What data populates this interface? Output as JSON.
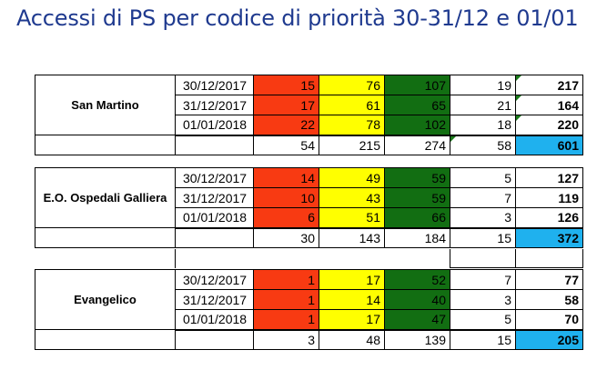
{
  "title": "Accessi di PS per codice di priorità 30-31/12 e 01/01",
  "colors": {
    "red": "#f83a12",
    "yellow": "#ffff00",
    "green": "#126e12",
    "total_highlight": "#1fb1ee",
    "title": "#1f3a8f"
  },
  "blocks": [
    {
      "site": "San Martino",
      "rows": [
        {
          "date": "30/12/2017",
          "red": "15",
          "yellow": "76",
          "green": "107",
          "white": "19",
          "total": "217"
        },
        {
          "date": "31/12/2017",
          "red": "17",
          "yellow": "61",
          "green": "65",
          "white": "21",
          "total": "164"
        },
        {
          "date": "01/01/2018",
          "red": "22",
          "yellow": "78",
          "green": "102",
          "white": "18",
          "total": "220"
        }
      ],
      "sum": {
        "red": "54",
        "yellow": "215",
        "green": "274",
        "white": "58",
        "total": "601"
      }
    },
    {
      "site": "E.O. Ospedali Galliera",
      "rows": [
        {
          "date": "30/12/2017",
          "red": "14",
          "yellow": "49",
          "green": "59",
          "white": "5",
          "total": "127"
        },
        {
          "date": "31/12/2017",
          "red": "10",
          "yellow": "43",
          "green": "59",
          "white": "7",
          "total": "119"
        },
        {
          "date": "01/01/2018",
          "red": "6",
          "yellow": "51",
          "green": "66",
          "white": "3",
          "total": "126"
        }
      ],
      "sum": {
        "red": "30",
        "yellow": "143",
        "green": "184",
        "white": "15",
        "total": "372"
      }
    },
    {
      "site": "Evangelico",
      "rows": [
        {
          "date": "30/12/2017",
          "red": "1",
          "yellow": "17",
          "green": "52",
          "white": "7",
          "total": "77"
        },
        {
          "date": "31/12/2017",
          "red": "1",
          "yellow": "14",
          "green": "40",
          "white": "3",
          "total": "58"
        },
        {
          "date": "01/01/2018",
          "red": "1",
          "yellow": "17",
          "green": "47",
          "white": "5",
          "total": "70"
        }
      ],
      "sum": {
        "red": "3",
        "yellow": "48",
        "green": "139",
        "white": "15",
        "total": "205"
      }
    }
  ]
}
